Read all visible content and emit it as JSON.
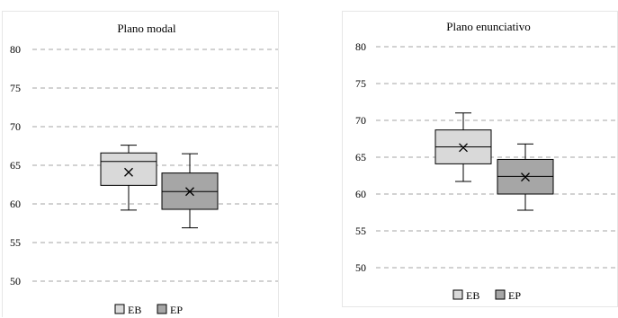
{
  "chart_data": [
    {
      "type": "box",
      "title": "Plano modal",
      "ylim": [
        50,
        80
      ],
      "yticks": [
        50,
        55,
        60,
        65,
        70,
        75,
        80
      ],
      "grid": true,
      "legend_position": "bottom",
      "series": [
        {
          "name": "EB",
          "color": "#d9d9d9",
          "min": 59.2,
          "q1": 62.4,
          "median": 65.5,
          "q3": 66.6,
          "max": 67.6,
          "mean": 64.1
        },
        {
          "name": "EP",
          "color": "#a6a6a6",
          "min": 56.9,
          "q1": 59.3,
          "median": 61.6,
          "q3": 64.0,
          "max": 66.5,
          "mean": 61.6
        }
      ]
    },
    {
      "type": "box",
      "title": "Plano enunciativo",
      "ylim": [
        50,
        80
      ],
      "yticks": [
        50,
        55,
        60,
        65,
        70,
        75,
        80
      ],
      "grid": true,
      "legend_position": "bottom",
      "series": [
        {
          "name": "EB",
          "color": "#d9d9d9",
          "min": 61.7,
          "q1": 64.1,
          "median": 66.4,
          "q3": 68.7,
          "max": 71.0,
          "mean": 66.3
        },
        {
          "name": "EP",
          "color": "#a6a6a6",
          "min": 57.8,
          "q1": 60.0,
          "median": 62.4,
          "q3": 64.7,
          "max": 66.8,
          "mean": 62.3
        }
      ]
    }
  ]
}
